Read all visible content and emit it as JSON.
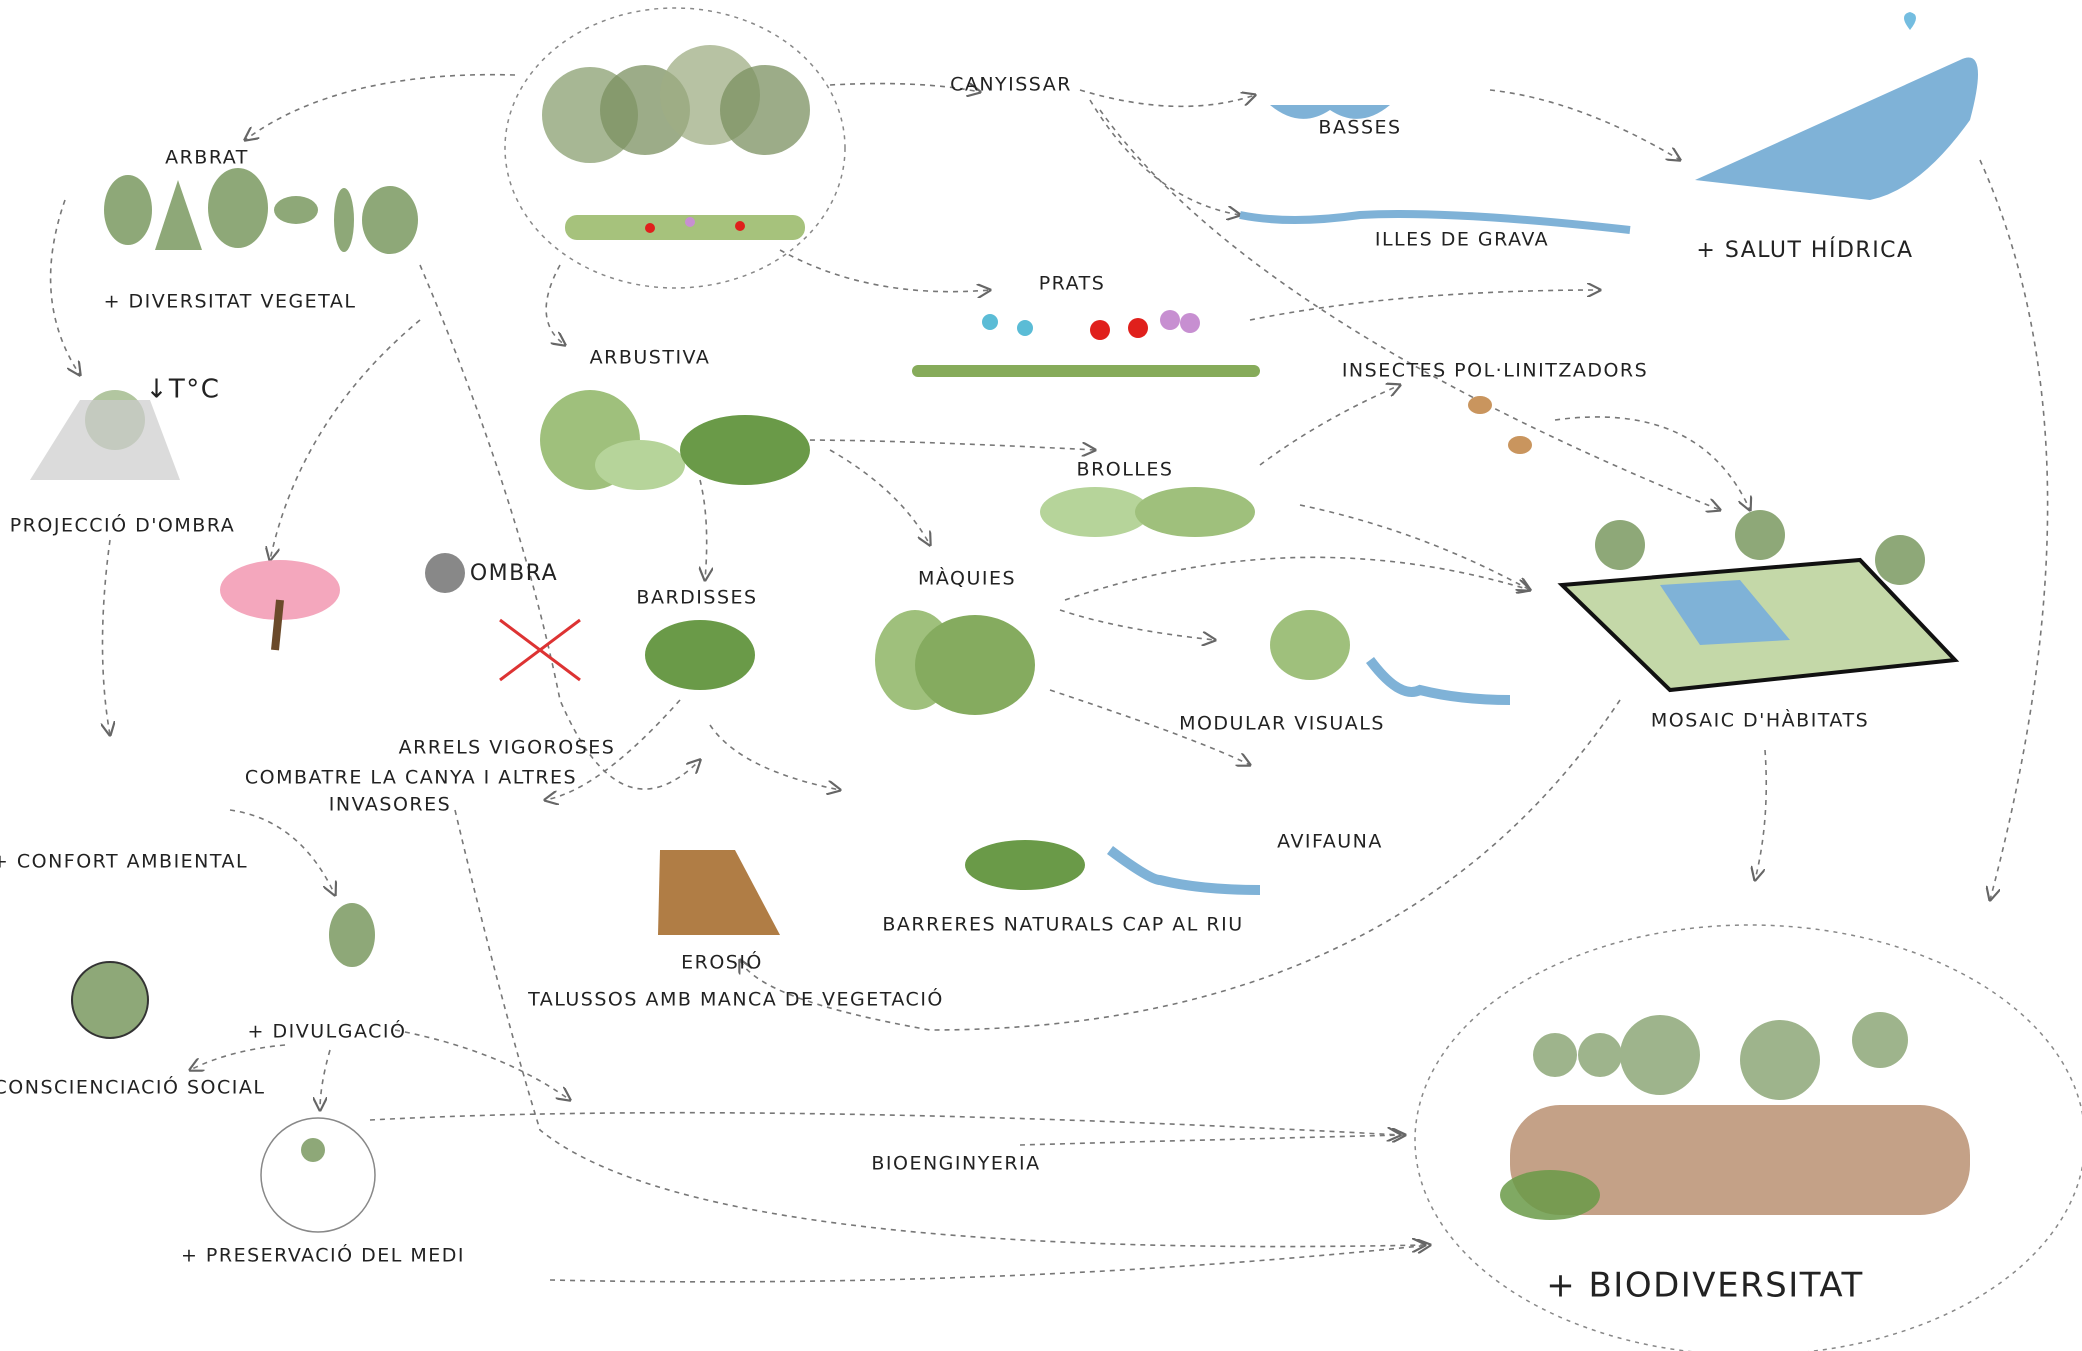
{
  "nodes": [
    {
      "label": "ARBRAT"
    },
    {
      "label": "+ DIVERSITAT VEGETAL"
    },
    {
      "label": "↓T°C"
    },
    {
      "label": "+ PROJECCIÓ D'OMBRA"
    },
    {
      "label": "OMBRA"
    },
    {
      "label": "ARRELS VIGOROSES"
    },
    {
      "label": "COMBATRE LA CANYA I ALTRES"
    },
    {
      "label": "INVASORES"
    },
    {
      "label": "+ CONFORT AMBIENTAL"
    },
    {
      "label": "+ DIVULGACIÓ"
    },
    {
      "label": "+ CONSCIENCIACIÓ SOCIAL"
    },
    {
      "label": "+ PRESERVACIÓ DEL MEDI"
    },
    {
      "label": "ARBUSTIVA"
    },
    {
      "label": "BARDISSES"
    },
    {
      "label": "EROSIÓ"
    },
    {
      "label": "TALUSSOS AMB MANCA DE VEGETACIÓ"
    },
    {
      "label": "BIOENGINYERIA"
    },
    {
      "label": "CANYISSAR"
    },
    {
      "label": "PRATS"
    },
    {
      "label": "BROLLES"
    },
    {
      "label": "MÀQUIES"
    },
    {
      "label": "BARRERES NATURALS CAP AL RIU"
    },
    {
      "label": "MODULAR VISUALS"
    },
    {
      "label": "AVIFAUNA"
    },
    {
      "label": "INSECTES POL·LINITZADORS"
    },
    {
      "label": "BASSES"
    },
    {
      "label": "ILLES DE GRAVA"
    },
    {
      "label": "+ SALUT HÍDRICA"
    },
    {
      "label": "MOSAIC D'HÀBITATS"
    },
    {
      "label": "+ BIODIVERSITAT"
    }
  ]
}
